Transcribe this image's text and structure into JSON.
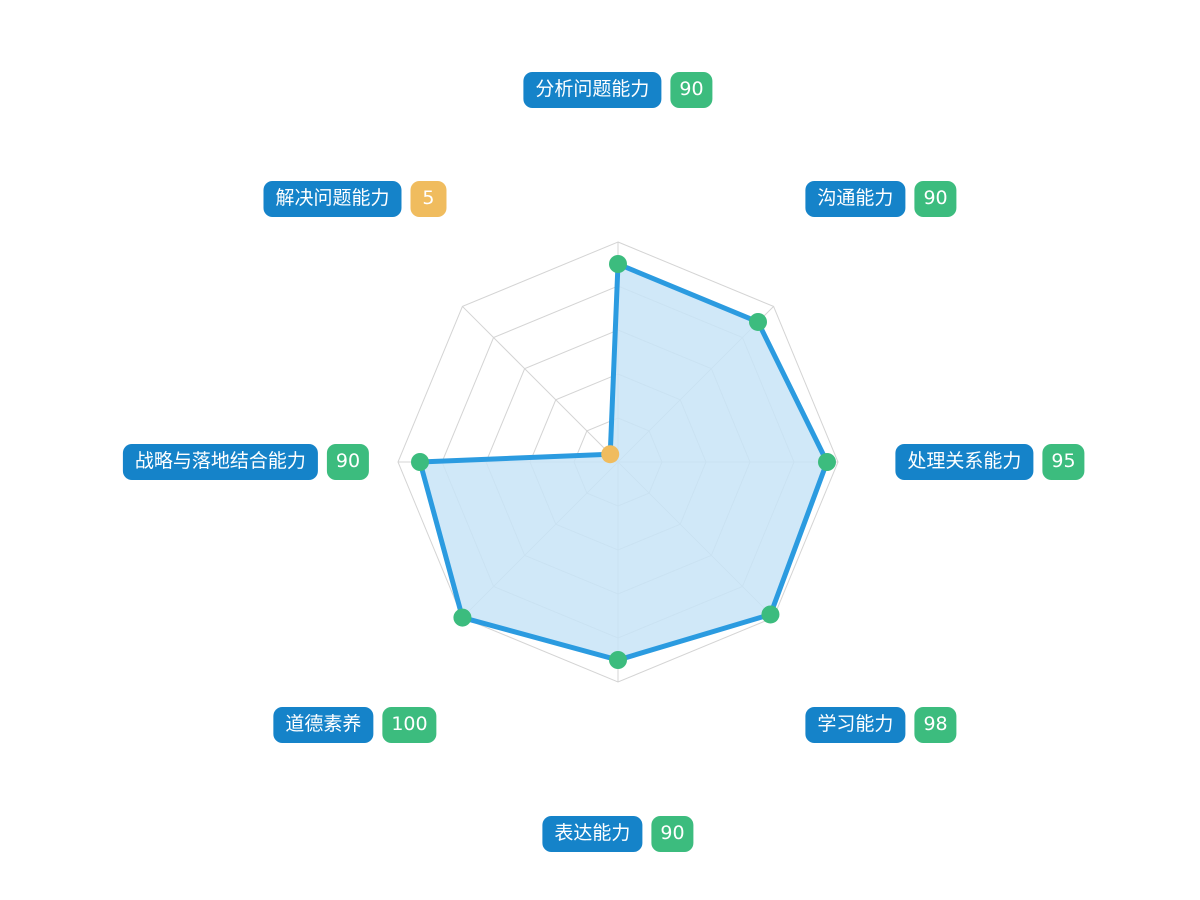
{
  "chart_data": {
    "type": "radar",
    "max": 100,
    "levels": 5,
    "categories": [
      "分析问题能力",
      "沟通能力",
      "处理关系能力",
      "学习能力",
      "表达能力",
      "道德素养",
      "战略与落地结合能力",
      "解决问题能力"
    ],
    "values": [
      90,
      90,
      95,
      98,
      90,
      100,
      90,
      5
    ],
    "value_labels": [
      "90",
      "90",
      "95",
      "98",
      "90",
      "100",
      "90",
      "5"
    ],
    "grid": true
  },
  "colors": {
    "line": "#2b9be0",
    "fill": "#c8e4f7",
    "grid": "#d4d4d4",
    "label_bg": "#1583c9",
    "value_good": "#3cbc7e",
    "value_low": "#f0bc5e"
  }
}
